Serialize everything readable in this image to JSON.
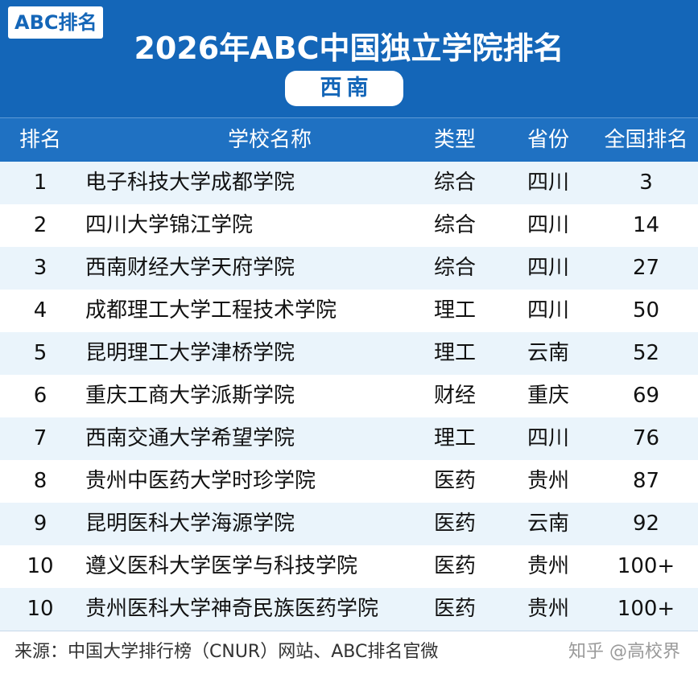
{
  "header": {
    "brand_tag": "ABC排名",
    "title": "2026年ABC中国独立学院排名",
    "region": "西南"
  },
  "table": {
    "columns": [
      "排名",
      "学校名称",
      "类型",
      "省份",
      "全国排名"
    ],
    "rows": [
      {
        "rank": "1",
        "name": "电子科技大学成都学院",
        "type": "综合",
        "province": "四川",
        "national": "3"
      },
      {
        "rank": "2",
        "name": "四川大学锦江学院",
        "type": "综合",
        "province": "四川",
        "national": "14"
      },
      {
        "rank": "3",
        "name": "西南财经大学天府学院",
        "type": "综合",
        "province": "四川",
        "national": "27"
      },
      {
        "rank": "4",
        "name": "成都理工大学工程技术学院",
        "type": "理工",
        "province": "四川",
        "national": "50"
      },
      {
        "rank": "5",
        "name": "昆明理工大学津桥学院",
        "type": "理工",
        "province": "云南",
        "national": "52"
      },
      {
        "rank": "6",
        "name": "重庆工商大学派斯学院",
        "type": "财经",
        "province": "重庆",
        "national": "69"
      },
      {
        "rank": "7",
        "name": "西南交通大学希望学院",
        "type": "理工",
        "province": "四川",
        "national": "76"
      },
      {
        "rank": "8",
        "name": "贵州中医药大学时珍学院",
        "type": "医药",
        "province": "贵州",
        "national": "87"
      },
      {
        "rank": "9",
        "name": "昆明医科大学海源学院",
        "type": "医药",
        "province": "云南",
        "national": "92"
      },
      {
        "rank": "10",
        "name": "遵义医科大学医学与科技学院",
        "type": "医药",
        "province": "贵州",
        "national": "100+"
      },
      {
        "rank": "10",
        "name": "贵州医科大学神奇民族医药学院",
        "type": "医药",
        "province": "贵州",
        "national": "100+"
      }
    ]
  },
  "footer": {
    "source": "来源：中国大学排行榜（CNUR）网站、ABC排名官微",
    "watermark": "知乎 @高校界"
  },
  "colors": {
    "banner": "#1466b8",
    "header_row": "#1f71c2",
    "stripe": "#eaf4fb"
  }
}
